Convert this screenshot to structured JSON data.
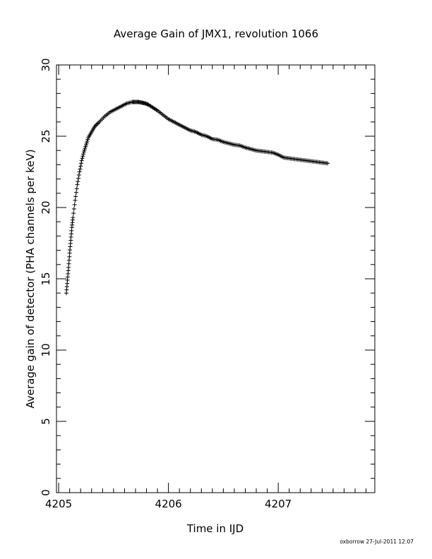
{
  "chart_data": {
    "type": "scatter",
    "title": "Average Gain of JMX1, revolution 1066",
    "xlabel": "Time in IJD",
    "ylabel": "Average gain of detector (PHA channels per keV)",
    "xlim": [
      4204.98,
      4207.88
    ],
    "ylim": [
      0,
      30
    ],
    "xticks": [
      4205,
      4206,
      4207
    ],
    "yticks": [
      0,
      5,
      10,
      15,
      20,
      25,
      30
    ],
    "xtick_labels": [
      "4205",
      "4206",
      "4207"
    ],
    "ytick_labels": [
      "0",
      "5",
      "10",
      "15",
      "20",
      "25",
      "30"
    ],
    "marker": "plus",
    "grid": false,
    "series": [
      {
        "x": [
          4205.07,
          4205.08,
          4205.09,
          4205.1,
          4205.11,
          4205.12,
          4205.13,
          4205.15,
          4205.17,
          4205.19,
          4205.21,
          4205.23,
          4205.25,
          4205.27,
          4205.3,
          4205.33,
          4205.37,
          4205.42,
          4205.47,
          4205.52,
          4205.57,
          4205.62,
          4205.67,
          4205.7,
          4205.73,
          4205.76,
          4205.79,
          4205.82,
          4205.86,
          4205.9,
          4205.95,
          4206.0,
          4206.05,
          4206.1,
          4206.15,
          4206.2,
          4206.25,
          4206.3,
          4206.35,
          4206.4,
          4206.45,
          4206.5,
          4206.55,
          4206.6,
          4206.65,
          4206.7,
          4206.75,
          4206.8,
          4206.85,
          4206.9,
          4206.95,
          4207.0,
          4207.05,
          4207.1,
          4207.15,
          4207.2,
          4207.25,
          4207.3,
          4207.35,
          4207.4,
          4207.45
        ],
        "y": [
          14.0,
          14.9,
          15.8,
          16.8,
          17.7,
          18.6,
          19.3,
          20.5,
          21.6,
          22.5,
          23.3,
          23.9,
          24.4,
          24.9,
          25.3,
          25.7,
          26.0,
          26.4,
          26.7,
          26.9,
          27.1,
          27.3,
          27.4,
          27.4,
          27.4,
          27.35,
          27.3,
          27.2,
          27.0,
          26.8,
          26.5,
          26.2,
          26.0,
          25.8,
          25.6,
          25.4,
          25.3,
          25.1,
          25.0,
          24.8,
          24.75,
          24.6,
          24.5,
          24.4,
          24.35,
          24.2,
          24.1,
          24.0,
          23.95,
          23.9,
          23.85,
          23.7,
          23.5,
          23.45,
          23.4,
          23.35,
          23.3,
          23.25,
          23.2,
          23.15,
          23.1
        ]
      }
    ]
  },
  "footer": {
    "stamp": "oxborrow 27-Jul-2011 12:07"
  }
}
